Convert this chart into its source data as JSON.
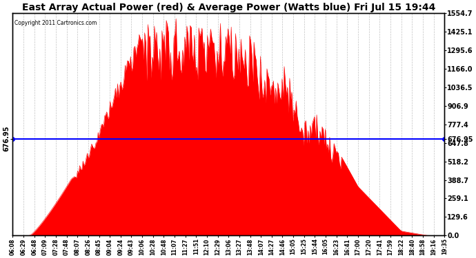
{
  "title": "East Array Actual Power (red) & Average Power (Watts blue) Fri Jul 15 19:44",
  "copyright": "Copyright 2011 Cartronics.com",
  "average_power": 676.95,
  "y_max": 1554.7,
  "y_min": 0.0,
  "ytick_values": [
    0.0,
    129.6,
    259.1,
    388.7,
    518.2,
    647.8,
    777.4,
    906.9,
    1036.5,
    1166.0,
    1295.6,
    1425.1,
    1554.7
  ],
  "avg_tick_value": 676.95,
  "fill_color": "#FF0000",
  "line_color": "#FF0000",
  "avg_line_color": "#0000FF",
  "background_color": "#FFFFFF",
  "grid_color": "#BBBBBB",
  "title_fontsize": 10,
  "xtick_labels": [
    "06:08",
    "06:29",
    "06:48",
    "07:09",
    "07:28",
    "07:48",
    "08:07",
    "08:26",
    "08:45",
    "09:04",
    "09:24",
    "09:43",
    "10:06",
    "10:28",
    "10:48",
    "11:07",
    "11:27",
    "11:51",
    "12:10",
    "12:29",
    "13:06",
    "13:27",
    "13:48",
    "14:07",
    "14:27",
    "14:46",
    "15:05",
    "15:25",
    "15:44",
    "16:05",
    "16:23",
    "16:41",
    "17:00",
    "17:20",
    "17:41",
    "17:59",
    "18:22",
    "18:40",
    "18:58",
    "19:16",
    "19:35"
  ],
  "n_points": 400
}
